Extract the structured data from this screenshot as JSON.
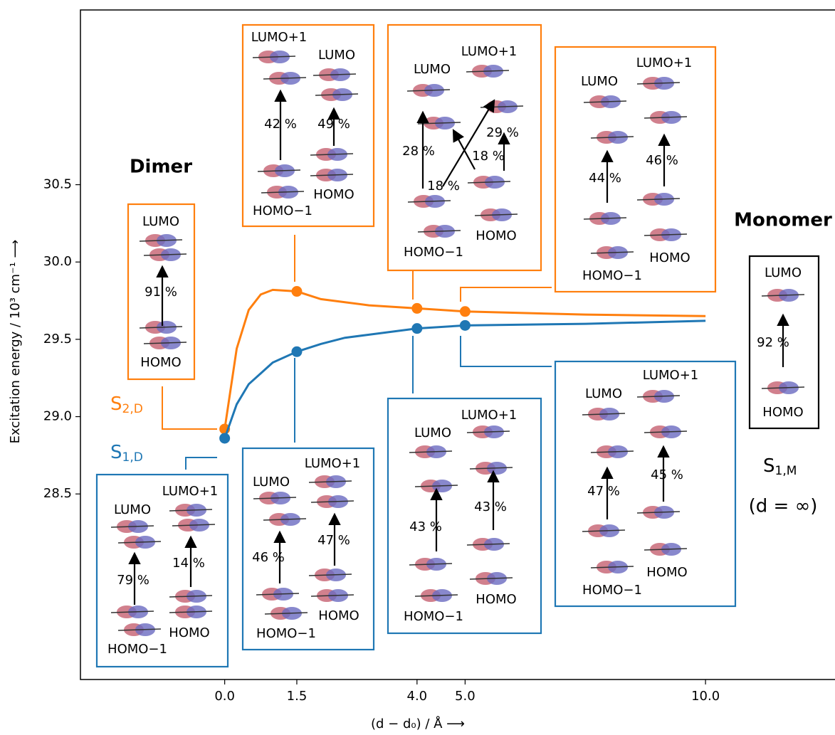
{
  "chart_data": {
    "type": "line",
    "x_label": "(d − d₀) / Å ⟶",
    "y_label": "Excitation energy / 10³ cm⁻¹ ⟶",
    "xlim": [
      -3.0,
      12.9
    ],
    "ylim": [
      27.3,
      31.63
    ],
    "xticks": [
      {
        "value": 0,
        "label": "0.0"
      },
      1.5,
      {
        "value": 4,
        "label": "4.0"
      },
      {
        "value": 5,
        "label": "5.0"
      },
      {
        "value": 10,
        "label": "10.0"
      }
    ],
    "yticks": [
      28.5,
      {
        "value": 29,
        "label": "29.0"
      },
      29.5,
      {
        "value": 30,
        "label": "30.0"
      },
      30.5
    ],
    "series": [
      {
        "name": "S2,D",
        "color": "#ff7f0e",
        "x": [
          0,
          0.25,
          0.5,
          0.75,
          1.0,
          1.5,
          2.0,
          2.5,
          3.0,
          4.0,
          5.0,
          7.5,
          10.0
        ],
        "values": [
          28.92,
          29.44,
          29.69,
          29.79,
          29.82,
          29.81,
          29.76,
          29.74,
          29.72,
          29.7,
          29.68,
          29.66,
          29.65
        ],
        "points_x": [
          0,
          1.5,
          4.0,
          5.0
        ],
        "points": [
          28.92,
          29.81,
          29.7,
          29.68
        ]
      },
      {
        "name": "S1,D",
        "color": "#1f77b4",
        "x": [
          0,
          0.25,
          0.5,
          0.75,
          1.0,
          1.5,
          2.0,
          2.5,
          3.0,
          4.0,
          5.0,
          7.5,
          10.0
        ],
        "values": [
          28.86,
          29.08,
          29.21,
          29.28,
          29.35,
          29.42,
          29.47,
          29.51,
          29.53,
          29.57,
          29.59,
          29.6,
          29.62
        ],
        "points_x": [
          0,
          1.5,
          4.0,
          5.0
        ],
        "points": [
          28.86,
          29.42,
          29.57,
          29.59
        ]
      }
    ],
    "annotations": [
      "Dimer",
      "Monomer",
      "S1,M",
      "(d = ∞)"
    ],
    "panels": [
      {
        "color": "#ff7f0e",
        "texts": [
          "LUMO",
          "91 %",
          "HOMO"
        ]
      },
      {
        "color": "#ff7f0e",
        "texts": [
          "LUMO+1",
          "LUMO",
          "42 %",
          "49 %",
          "HOMO",
          "HOMO−1"
        ]
      },
      {
        "color": "#ff7f0e",
        "texts": [
          "LUMO+1",
          "LUMO",
          "28 %",
          "29 %",
          "18 %",
          "18 %",
          "HOMO",
          "HOMO−1"
        ]
      },
      {
        "color": "#ff7f0e",
        "texts": [
          "LUMO",
          "LUMO+1",
          "44 %",
          "46 %",
          "HOMO",
          "HOMO−1"
        ]
      },
      {
        "color": "#1f77b4",
        "texts": [
          "LUMO",
          "LUMO+1",
          "79 %",
          "14 %",
          "HOMO",
          "HOMO−1"
        ]
      },
      {
        "color": "#1f77b4",
        "texts": [
          "LUMO",
          "LUMO+1",
          "46 %",
          "47 %",
          "HOMO",
          "HOMO−1"
        ]
      },
      {
        "color": "#1f77b4",
        "texts": [
          "LUMO",
          "LUMO+1",
          "43 %",
          "43 %",
          "HOMO",
          "HOMO−1"
        ]
      },
      {
        "color": "#1f77b4",
        "texts": [
          "LUMO",
          "LUMO+1",
          "47 %",
          "45 %",
          "HOMO",
          "HOMO−1"
        ]
      },
      {
        "color": "#000000",
        "texts": [
          "LUMO",
          "92 %",
          "HOMO"
        ]
      }
    ]
  }
}
